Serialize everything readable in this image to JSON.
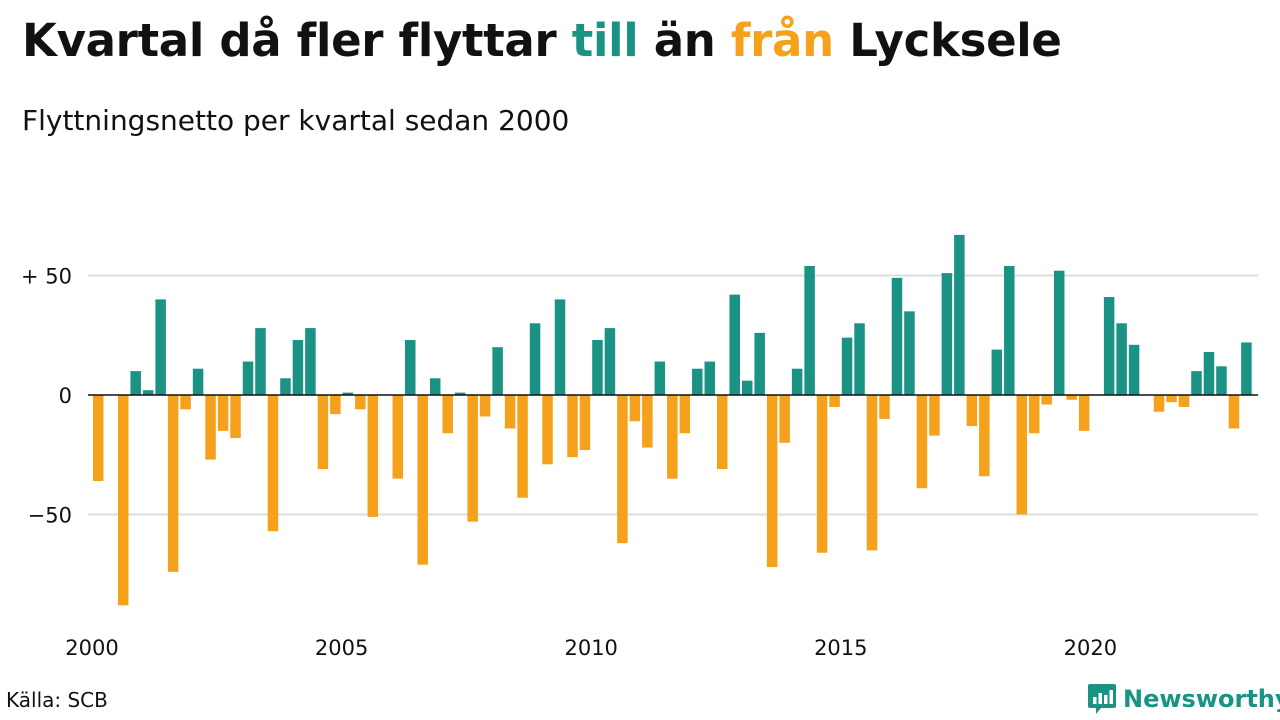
{
  "title": {
    "part1": "Kvartal då fler flyttar ",
    "word_in": "till",
    "part2": " än ",
    "word_out": "från",
    "part3": " Lycksele"
  },
  "subtitle": "Flyttningsnetto per kvartal sedan 2000",
  "source": "Källa: SCB",
  "brand": {
    "name": "Newsworthy",
    "icon": "newsworthy-logo-icon"
  },
  "colors": {
    "positive": "#1a9385",
    "negative": "#f5a11c",
    "grid": "#dddddd",
    "zero_line": "#111111"
  },
  "chart_data": {
    "type": "bar",
    "title": "Kvartal då fler flyttar till än från Lycksele",
    "subtitle": "Flyttningsnetto per kvartal sedan 2000",
    "xlabel": "",
    "ylabel": "",
    "x_start": "2000 Q1",
    "x_ticks": [
      2000,
      2005,
      2010,
      2015,
      2020
    ],
    "y_ticks": [
      50,
      0,
      -50
    ],
    "y_tick_labels": [
      "+ 50",
      "0",
      "−50"
    ],
    "ylim": [
      -93,
      73
    ],
    "grid": true,
    "legend": "none",
    "values": [
      -36,
      0,
      -88,
      10,
      2,
      40,
      -74,
      -6,
      11,
      -27,
      -15,
      -18,
      14,
      28,
      -57,
      7,
      23,
      28,
      -31,
      -8,
      1,
      -6,
      -51,
      0,
      -35,
      23,
      -71,
      7,
      -16,
      1,
      -53,
      -9,
      20,
      -14,
      -43,
      30,
      -29,
      40,
      -26,
      -23,
      23,
      28,
      -62,
      -11,
      -22,
      14,
      -35,
      -16,
      11,
      14,
      -31,
      42,
      6,
      26,
      -72,
      -20,
      11,
      54,
      -66,
      -5,
      24,
      30,
      -65,
      -10,
      49,
      35,
      -39,
      -17,
      51,
      67,
      -13,
      -34,
      19,
      54,
      -50,
      -16,
      -4,
      52,
      -2,
      -15,
      0,
      41,
      30,
      21,
      0,
      -7,
      -3,
      -5,
      10,
      18,
      12,
      -14,
      22
    ]
  }
}
